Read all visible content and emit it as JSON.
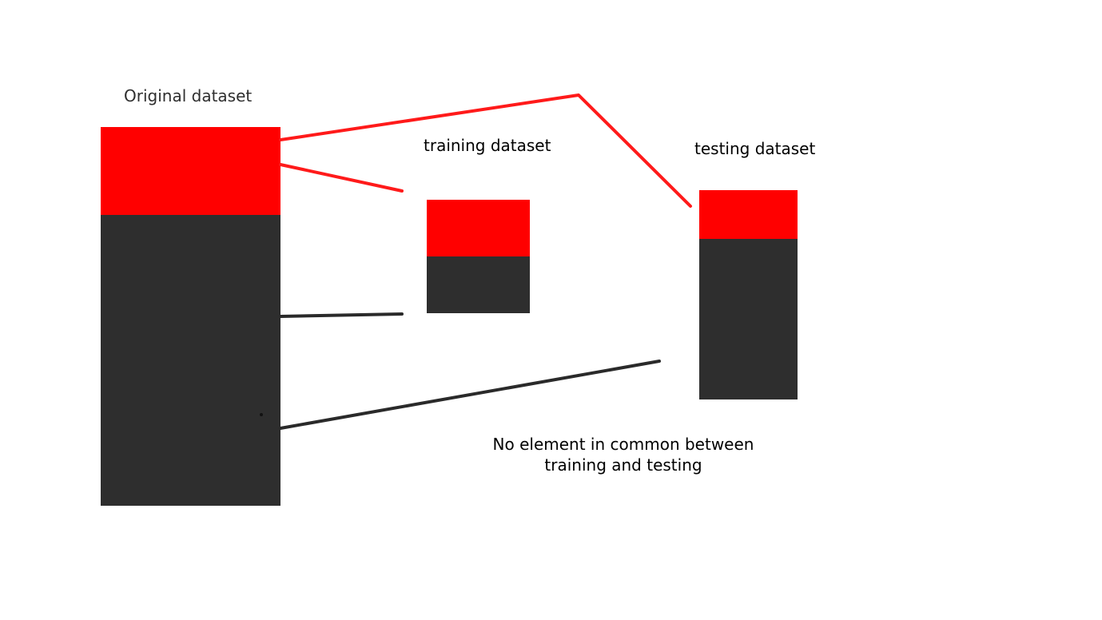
{
  "labels": {
    "original": "Original dataset",
    "training": "training dataset",
    "testing": "testing dataset"
  },
  "note": {
    "line1": "No element in common between",
    "line2": "training and testing"
  },
  "colors": {
    "red_part": "#ff0000",
    "dark_part": "#2e2e2e",
    "red_connector": "#ff1a1a",
    "dark_connector": "#2a2a2a",
    "background": "#ffffff"
  }
}
